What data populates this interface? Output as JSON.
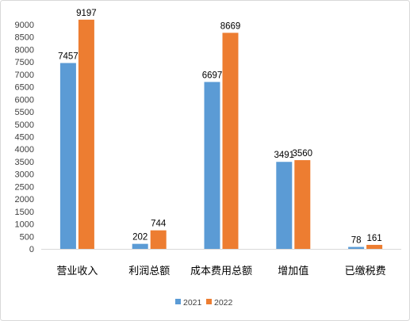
{
  "chart_data": {
    "type": "bar",
    "categories": [
      "营业收入",
      "利润总额",
      "成本费用总额",
      "增加值",
      "已缴税费"
    ],
    "series": [
      {
        "name": "2021",
        "color": "#5B9BD5",
        "values": [
          7457,
          202,
          6697,
          3491,
          78
        ]
      },
      {
        "name": "2022",
        "color": "#ED7D31",
        "values": [
          9197,
          744,
          8669,
          3560,
          161
        ]
      }
    ],
    "ylim": [
      0,
      9000
    ],
    "yticks": [
      0,
      500,
      1000,
      1500,
      2000,
      2500,
      3000,
      3500,
      4000,
      4500,
      5000,
      5500,
      6000,
      6500,
      7000,
      7500,
      8000,
      8500,
      9000
    ],
    "grid": false,
    "legend": "bottom",
    "data_labels": true
  }
}
